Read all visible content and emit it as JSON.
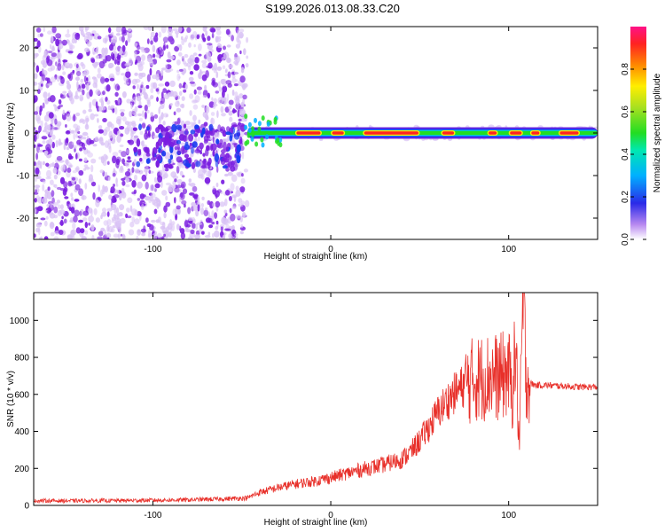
{
  "title": "S199.2026.013.08.33.C20",
  "colors": {
    "snr_line": "#e8302a",
    "spectral_dense": "#7a1de0",
    "spectral_light": "#d9c2f5",
    "track_peak": "#ff2222",
    "frame": "#000000"
  },
  "chart_data": [
    {
      "type": "heatmap",
      "xlabel": "Height of straight line (km)",
      "ylabel": "Frequency (Hz)",
      "xlim": [
        -167,
        150
      ],
      "ylim": [
        -25,
        25
      ],
      "xticks": [
        -100,
        0,
        100
      ],
      "yticks": [
        20,
        10,
        0,
        -10,
        -20
      ],
      "noise_region": {
        "x_start": -167,
        "x_end": -47,
        "dense_cluster_x": [
          -110,
          -50
        ],
        "dense_cluster_y": [
          -8,
          2
        ]
      },
      "signal_track": {
        "frequency_hz": 0,
        "x_start": -47,
        "x_end": 150,
        "peak_segments": [
          [
            -20,
            -5
          ],
          [
            0,
            8
          ],
          [
            18,
            50
          ],
          [
            62,
            70
          ],
          [
            88,
            94
          ],
          [
            100,
            108
          ],
          [
            112,
            118
          ],
          [
            128,
            140
          ]
        ]
      },
      "colorbar": {
        "label": "Normalized spectral amplitude",
        "range": [
          0.0,
          1.0
        ],
        "ticks": [
          "0.0",
          "0.2",
          "0.4",
          "0.6",
          "0.8"
        ],
        "tick_values": [
          0.0,
          0.2,
          0.4,
          0.6,
          0.8
        ]
      }
    },
    {
      "type": "line",
      "xlabel": "Height of straight line (km)",
      "ylabel": "SNR (10 * v/v)",
      "xlim": [
        -167,
        150
      ],
      "ylim": [
        0,
        1150
      ],
      "xticks": [
        -100,
        0,
        100
      ],
      "yticks": [
        0,
        200,
        400,
        600,
        800,
        1000
      ],
      "series": [
        {
          "x": [
            -167,
            -150,
            -120,
            -100,
            -80,
            -60,
            -47,
            -40,
            -30,
            -20,
            -10,
            0,
            10,
            20,
            30,
            40,
            45,
            50,
            55,
            60,
            65,
            70,
            75,
            80,
            85,
            90,
            95,
            100,
            102,
            104,
            106,
            108,
            110,
            112,
            115,
            120,
            130,
            140,
            150
          ],
          "values": [
            25,
            25,
            26,
            28,
            30,
            35,
            40,
            70,
            95,
            115,
            130,
            150,
            175,
            200,
            220,
            250,
            290,
            350,
            420,
            500,
            560,
            610,
            650,
            680,
            690,
            700,
            690,
            720,
            600,
            850,
            300,
            1100,
            700,
            660,
            650,
            650,
            645,
            640,
            640
          ]
        }
      ]
    }
  ]
}
